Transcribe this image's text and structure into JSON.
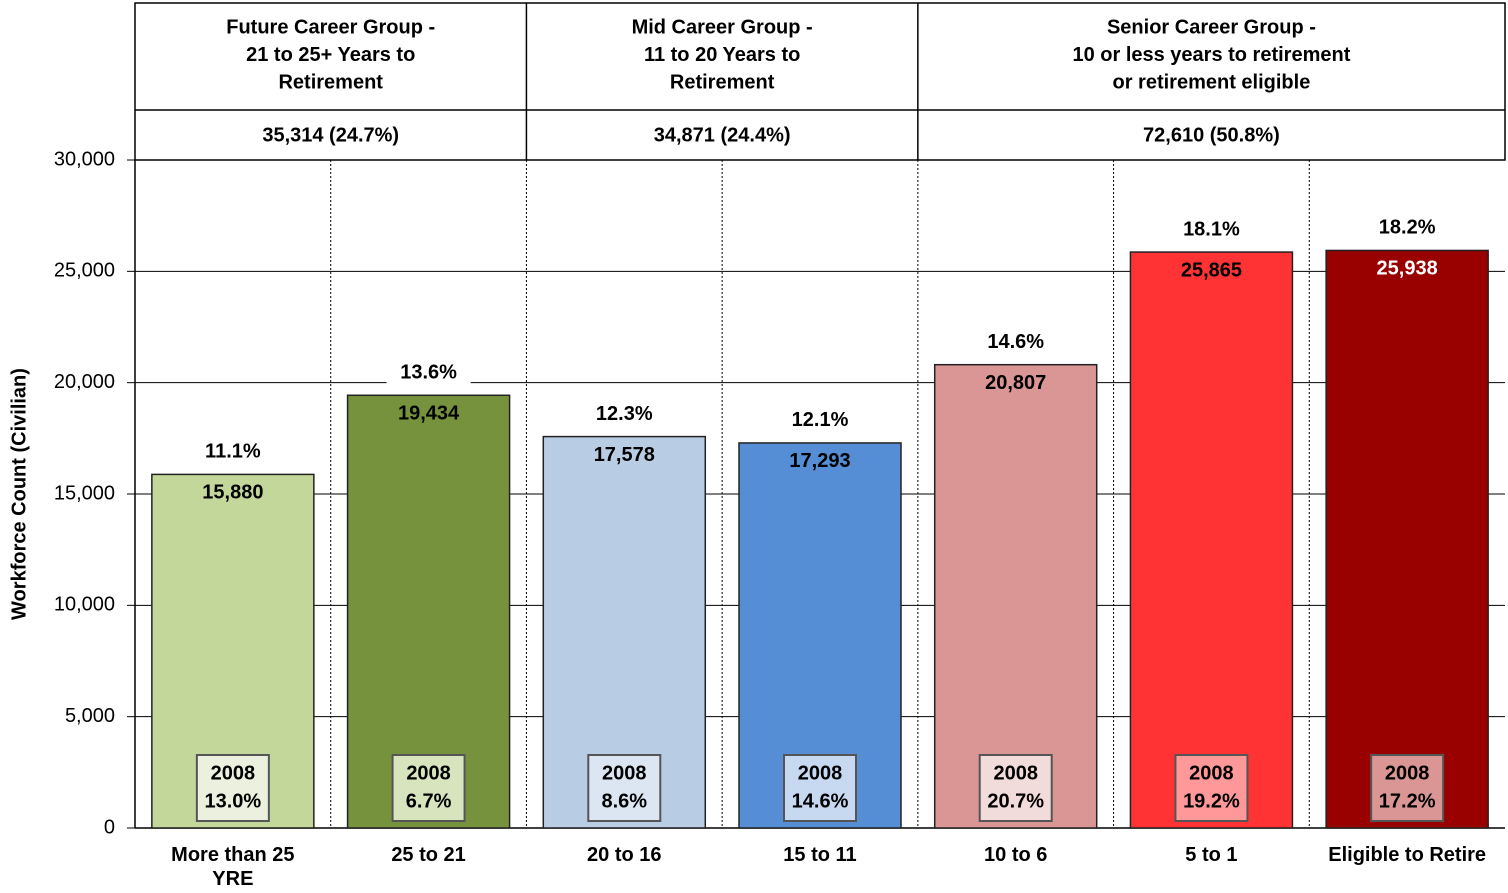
{
  "chart_data": {
    "type": "bar",
    "y_label": "Workforce Count (Civilian)",
    "categories": [
      "More than 25 YRE",
      "25 to 21",
      "20 to 16",
      "15 to 11",
      "10 to 6",
      "5 to 1",
      "Eligible to Retire"
    ],
    "values": [
      15880,
      19434,
      17578,
      17293,
      20807,
      25865,
      25938
    ],
    "value_labels": [
      "15,880",
      "19,434",
      "17,578",
      "17,293",
      "20,807",
      "25,865",
      "25,938"
    ],
    "percent_labels": [
      "11.1%",
      "13.6%",
      "12.3%",
      "12.1%",
      "14.6%",
      "18.1%",
      "18.2%"
    ],
    "colors": [
      "#c4d79b",
      "#76923c",
      "#b8cce4",
      "#558ed5",
      "#d99694",
      "#ff3333",
      "#990000"
    ],
    "label_colors": [
      "#000000",
      "#000000",
      "#000000",
      "#000000",
      "#000000",
      "#000000",
      "#ffffff"
    ],
    "comparison": {
      "year": "2008",
      "labels": [
        "13.0%",
        "6.7%",
        "8.6%",
        "14.6%",
        "20.7%",
        "19.2%",
        "17.2%"
      ],
      "box_colors": [
        "#ebf1de",
        "#d7e4bd",
        "#dce6f2",
        "#c6d9f1",
        "#f2dcdb",
        "#ff9999",
        "#d99694"
      ]
    },
    "groups": [
      {
        "lines": [
          "Future Career Group -",
          "21 to 25+ Years to",
          "Retirement"
        ],
        "total": "35,314 (24.7%)",
        "span": 2
      },
      {
        "lines": [
          "Mid Career Group -",
          "11 to 20 Years to",
          "Retirement"
        ],
        "total": "34,871 (24.4%)",
        "span": 2
      },
      {
        "lines": [
          "Senior Career Group -",
          "10 or less years to retirement",
          "or retirement eligible"
        ],
        "total": "72,610 (50.8%)",
        "span": 3
      }
    ],
    "ylim": [
      0,
      30000
    ],
    "yticks": [
      {
        "value": 0,
        "label": "0"
      },
      {
        "value": 5000,
        "label": "5,000"
      },
      {
        "value": 10000,
        "label": "10,000"
      },
      {
        "value": 15000,
        "label": "15,000"
      },
      {
        "value": 20000,
        "label": "20,000"
      },
      {
        "value": 25000,
        "label": "25,000"
      },
      {
        "value": 30000,
        "label": "30,000"
      }
    ],
    "grid": true
  }
}
